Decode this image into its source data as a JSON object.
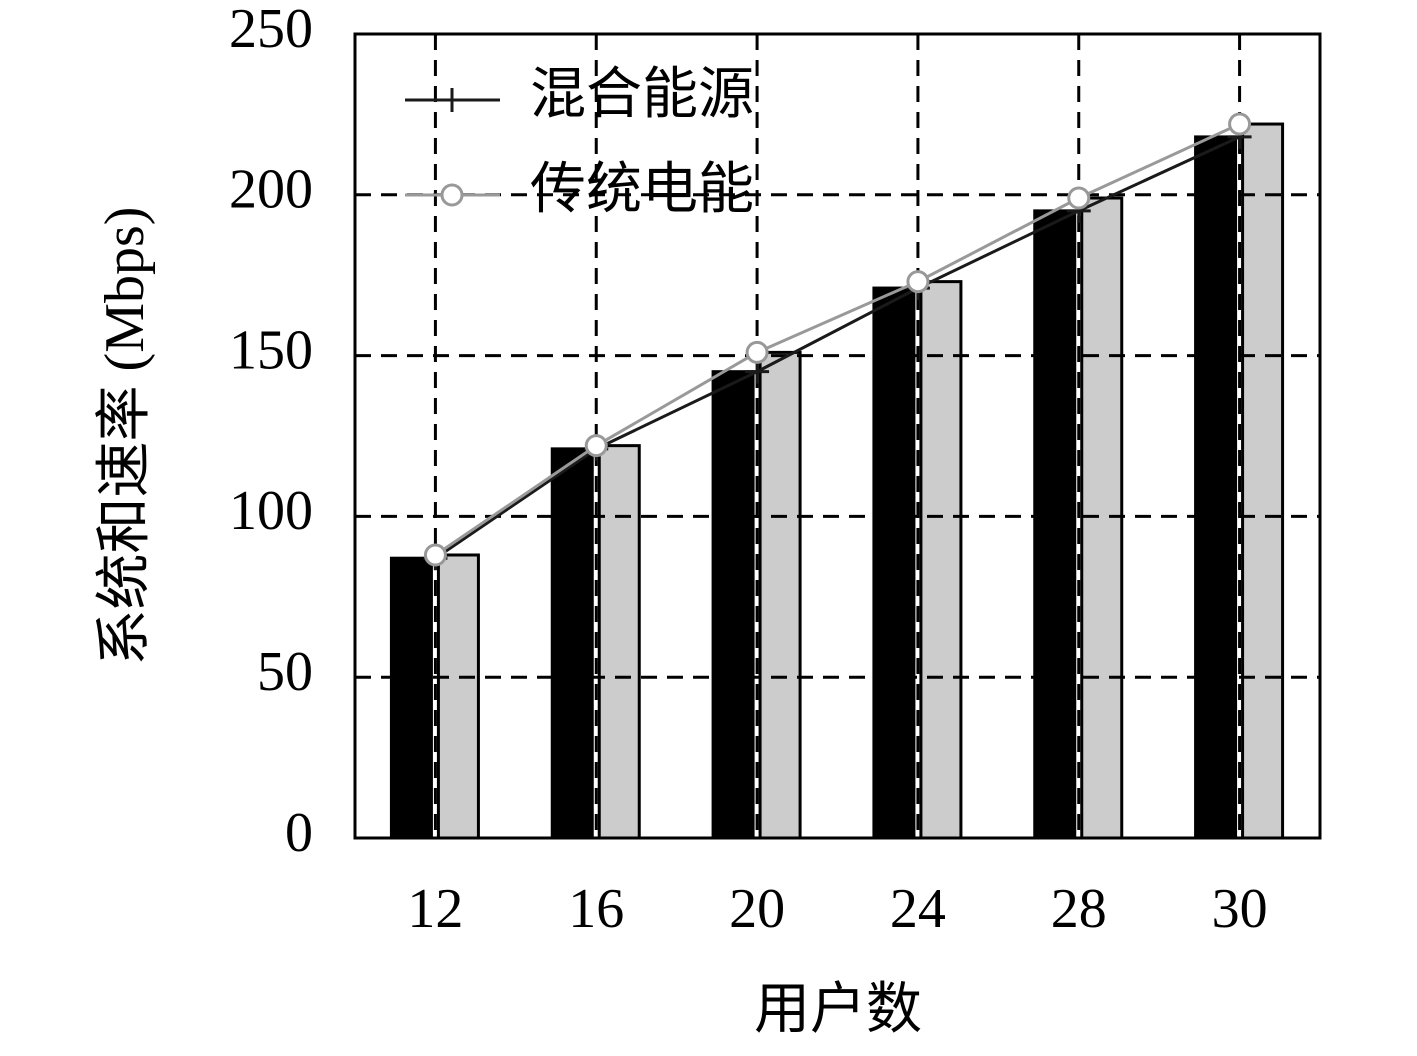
{
  "chart_data": {
    "type": "bar",
    "y_label": "系统和速率 (Mbps)",
    "x_label": "用户数",
    "categories": [
      "12",
      "16",
      "20",
      "24",
      "28",
      "30"
    ],
    "series": [
      {
        "name": "混合能源",
        "color": "#000000",
        "line_color": "#1a1a1a",
        "marker": "plus",
        "values": [
          87,
          121,
          145,
          171,
          195,
          218
        ]
      },
      {
        "name": "传统电能",
        "color": "#cccccc",
        "line_color": "#999999",
        "marker": "circle",
        "values": [
          88,
          122,
          151,
          173,
          199,
          222
        ]
      }
    ],
    "ylim": [
      0,
      250
    ],
    "yticks": [
      0,
      50,
      100,
      150,
      200,
      250
    ],
    "grid": true,
    "legend": "upper left"
  }
}
